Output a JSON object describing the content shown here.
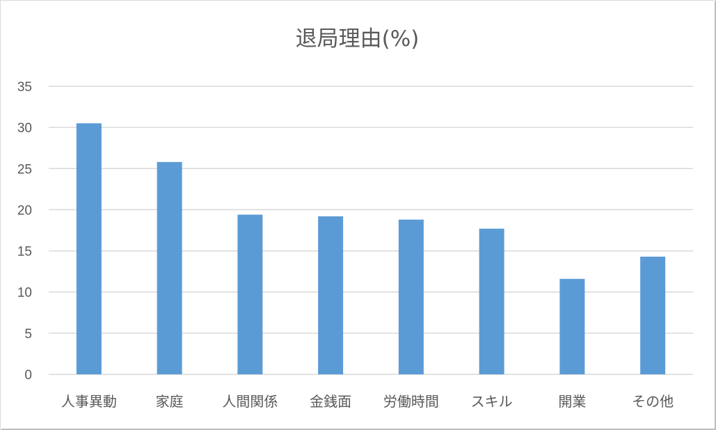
{
  "chart_data": {
    "type": "bar",
    "title": "退局理由(%)",
    "xlabel": "",
    "ylabel": "",
    "categories": [
      "人事異動",
      "家庭",
      "人間関係",
      "金銭面",
      "労働時間",
      "スキル",
      "開業",
      "その他"
    ],
    "values": [
      30.5,
      25.8,
      19.4,
      19.2,
      18.8,
      17.7,
      11.6,
      14.3
    ],
    "ylim": [
      0,
      35
    ],
    "yticks": [
      0,
      5,
      10,
      15,
      20,
      25,
      30,
      35
    ],
    "grid": true,
    "legend": "none",
    "colors": {
      "bar": "#5b9bd5",
      "grid": "#d9d9d9",
      "text": "#595959"
    }
  }
}
